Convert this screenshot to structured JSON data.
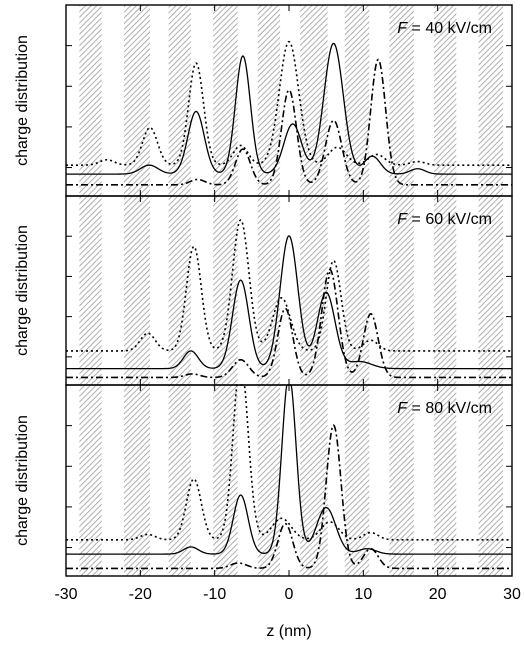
{
  "chart_data": {
    "type": "line",
    "xlabel": "z (nm)",
    "ylabel": "charge distribution",
    "xlim": [
      -30,
      30
    ],
    "xticks": [
      -30,
      -20,
      -10,
      0,
      10,
      20,
      30
    ],
    "xticklabels": [
      "-30",
      "-20",
      "-10",
      "0",
      "10",
      "20",
      "30"
    ],
    "y_tick_labels_shown": false,
    "shaded_bands_nm": [
      [
        -28.2,
        -25.2
      ],
      [
        -22.2,
        -18.7
      ],
      [
        -16.2,
        -13.2
      ],
      [
        -10.2,
        -6.9
      ],
      [
        -4.2,
        -1.2
      ],
      [
        1.5,
        5.2
      ],
      [
        7.5,
        10.8
      ],
      [
        13.5,
        16.8
      ],
      [
        19.5,
        22.5
      ],
      [
        25.5,
        28.8
      ]
    ],
    "band_fill": "#bdbdbd",
    "panels": [
      {
        "label_prefix": "F",
        "label_value": " = 40 kV/cm",
        "series": [
          {
            "style": "solid",
            "baseline": 0.1,
            "peaks": [
              [
                -18.8,
                0.05,
                1.2
              ],
              [
                -12.5,
                0.35,
                1.1
              ],
              [
                -6.2,
                0.66,
                1.0
              ],
              [
                0.5,
                0.28,
                1.2
              ],
              [
                6.0,
                0.73,
                1.3
              ],
              [
                11.2,
                0.1,
                1.1
              ],
              [
                17.3,
                0.03,
                1.0
              ]
            ]
          },
          {
            "style": "dotted",
            "baseline": 0.15,
            "peaks": [
              [
                -24.5,
                0.03,
                1.0
              ],
              [
                -18.7,
                0.21,
                1.0
              ],
              [
                -12.5,
                0.57,
                1.0
              ],
              [
                -6.5,
                0.11,
                1.0
              ],
              [
                0.0,
                0.69,
                1.3
              ],
              [
                6.5,
                0.1,
                1.2
              ],
              [
                11.8,
                0.06,
                1.1
              ],
              [
                17.3,
                0.02,
                1.0
              ]
            ]
          },
          {
            "style": "dashdot",
            "baseline": 0.04,
            "peaks": [
              [
                -12.3,
                0.03,
                1.0
              ],
              [
                -6.2,
                0.2,
                1.0
              ],
              [
                0.0,
                0.53,
                1.0
              ],
              [
                6.0,
                0.36,
                1.1
              ],
              [
                12.0,
                0.7,
                1.0
              ]
            ]
          }
        ]
      },
      {
        "label_prefix": "F",
        "label_value": " = 60 kV/cm",
        "series": [
          {
            "style": "solid",
            "baseline": 0.07,
            "peaks": [
              [
                -13.2,
                0.1,
                1.0
              ],
              [
                -6.5,
                0.5,
                1.1
              ],
              [
                0.0,
                0.75,
                1.2
              ],
              [
                5.0,
                0.43,
                1.2
              ],
              [
                9.5,
                0.04,
                1.6
              ]
            ]
          },
          {
            "style": "dotted",
            "baseline": 0.17,
            "peaks": [
              [
                -19.0,
                0.1,
                1.0
              ],
              [
                -12.8,
                0.59,
                1.0
              ],
              [
                -6.5,
                0.74,
                1.1
              ],
              [
                -1.0,
                0.3,
                1.2
              ],
              [
                6.0,
                0.51,
                1.0
              ],
              [
                11.0,
                0.06,
                1.0
              ]
            ]
          },
          {
            "style": "dashdot",
            "baseline": 0.02,
            "peaks": [
              [
                -13.0,
                0.02,
                1.0
              ],
              [
                -6.5,
                0.1,
                1.1
              ],
              [
                -0.5,
                0.39,
                1.0
              ],
              [
                5.5,
                0.61,
                1.1
              ],
              [
                11.0,
                0.36,
                1.0
              ]
            ]
          }
        ]
      },
      {
        "label_prefix": "F",
        "label_value": " = 80 kV/cm",
        "series": [
          {
            "style": "solid",
            "baseline": 0.1,
            "peaks": [
              [
                -13.2,
                0.04,
                1.0
              ],
              [
                -6.5,
                0.33,
                1.0
              ],
              [
                0.0,
                1.0,
                0.95
              ],
              [
                5.0,
                0.26,
                1.3
              ],
              [
                10.5,
                0.03,
                1.2
              ]
            ]
          },
          {
            "style": "dotted",
            "baseline": 0.18,
            "peaks": [
              [
                -19.0,
                0.03,
                1.0
              ],
              [
                -12.8,
                0.34,
                1.0
              ],
              [
                -6.5,
                1.0,
                1.0
              ],
              [
                -1.0,
                0.12,
                1.3
              ],
              [
                5.5,
                0.1,
                1.2
              ],
              [
                11.0,
                0.04,
                1.0
              ]
            ]
          },
          {
            "style": "dashdot",
            "baseline": 0.02,
            "peaks": [
              [
                -6.8,
                0.03,
                1.1
              ],
              [
                -0.5,
                0.25,
                1.0
              ],
              [
                6.0,
                0.8,
                1.0
              ],
              [
                11.0,
                0.11,
                1.0
              ]
            ]
          }
        ]
      }
    ]
  }
}
